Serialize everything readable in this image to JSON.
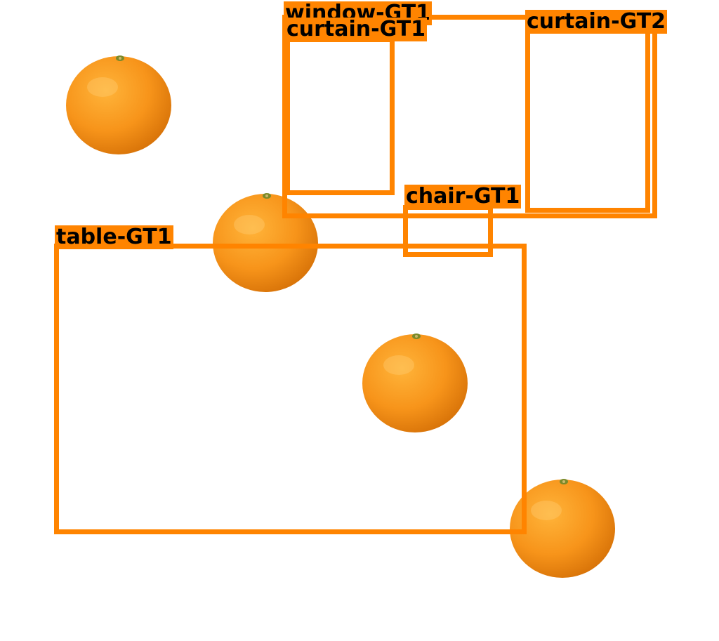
{
  "annotations": {
    "window": {
      "label": "window-GT1"
    },
    "curtain_1": {
      "label": "curtain-GT1"
    },
    "curtain_2": {
      "label": "curtain-GT2"
    },
    "chair": {
      "label": "chair-GT1"
    },
    "table": {
      "label": "table-GT1"
    }
  },
  "box_color": "#ff8400",
  "object_icon": "orange-fruit-icon",
  "object_count": 4
}
